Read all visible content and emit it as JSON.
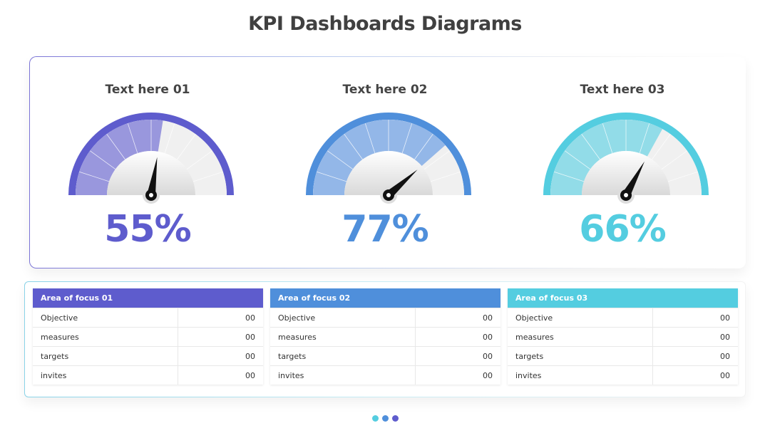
{
  "title": "KPI Dashboards Diagrams",
  "gauges": [
    {
      "label": "Text here 01",
      "value_text": "55%",
      "value": 55,
      "color": "#5e5ccd",
      "fill": "#9997dd"
    },
    {
      "label": "Text here 02",
      "value_text": "77%",
      "value": 77,
      "color": "#4f8fdb",
      "fill": "#93b7e8"
    },
    {
      "label": "Text here 03",
      "value_text": "66%",
      "value": 66,
      "color": "#54cde0",
      "fill": "#92dce8"
    }
  ],
  "tables": [
    {
      "header": "Area of focus 01",
      "color": "#5e5ccd",
      "rows": [
        {
          "key": "Objective",
          "value": "00"
        },
        {
          "key": "measures",
          "value": "00"
        },
        {
          "key": "targets",
          "value": "00"
        },
        {
          "key": "invites",
          "value": "00"
        }
      ]
    },
    {
      "header": "Area of focus 02",
      "color": "#4f8fdb",
      "rows": [
        {
          "key": "Objective",
          "value": "00"
        },
        {
          "key": "measures",
          "value": "00"
        },
        {
          "key": "targets",
          "value": "00"
        },
        {
          "key": "invites",
          "value": "00"
        }
      ]
    },
    {
      "header": "Area of focus 03",
      "color": "#54cde0",
      "rows": [
        {
          "key": "Objective",
          "value": "00"
        },
        {
          "key": "measures",
          "value": "00"
        },
        {
          "key": "targets",
          "value": "00"
        },
        {
          "key": "invites",
          "value": "00"
        }
      ]
    }
  ],
  "pager_colors": [
    "#54cde0",
    "#4f8fdb",
    "#5e5ccd"
  ]
}
